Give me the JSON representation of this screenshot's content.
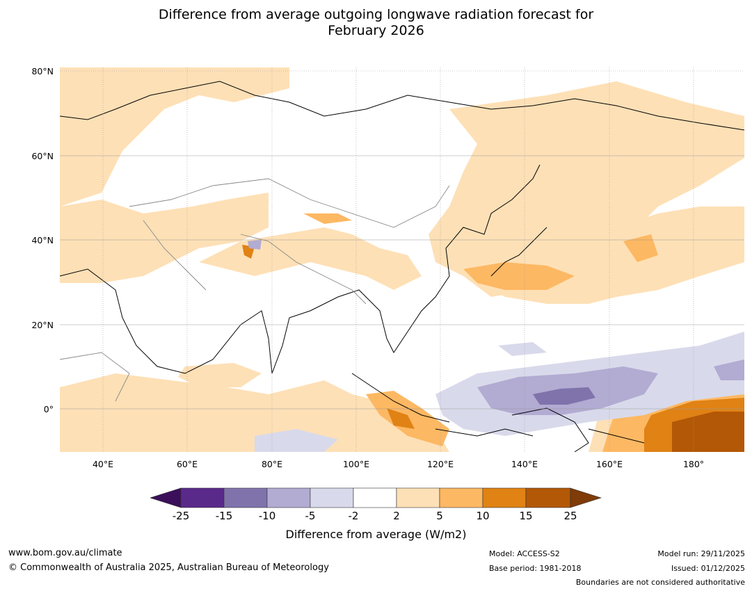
{
  "title": {
    "line1": "Difference from average outgoing longwave radiation forecast for",
    "line2": "February 2026"
  },
  "map": {
    "lat_labels": [
      "80°N",
      "60°N",
      "40°N",
      "20°N",
      "0°"
    ],
    "lon_labels": [
      "40°E",
      "60°E",
      "80°E",
      "100°E",
      "120°E",
      "140°E",
      "160°E",
      "180°"
    ]
  },
  "colorbar": {
    "label": "Difference from average (W/m2)",
    "ticks": [
      "-25",
      "-15",
      "-10",
      "-5",
      "-2",
      "2",
      "5",
      "10",
      "15",
      "25"
    ],
    "colors": [
      "#3b0f5a",
      "#5a2a8a",
      "#8073ac",
      "#b2abd2",
      "#d8daeb",
      "#ffffff",
      "#fee0b6",
      "#fdb863",
      "#e08214",
      "#b35806",
      "#7f3b08"
    ]
  },
  "footer": {
    "website": "www.bom.gov.au/climate",
    "copyright": "© Commonwealth of Australia 2025, Australian Bureau of Meteorology",
    "model": "Model: ACCESS-S2",
    "base_period": "Base period: 1981-2018",
    "model_run": "Model run: 29/11/2025",
    "issued": "Issued: 01/12/2025",
    "boundaries": "Boundaries are not considered authoritative"
  }
}
